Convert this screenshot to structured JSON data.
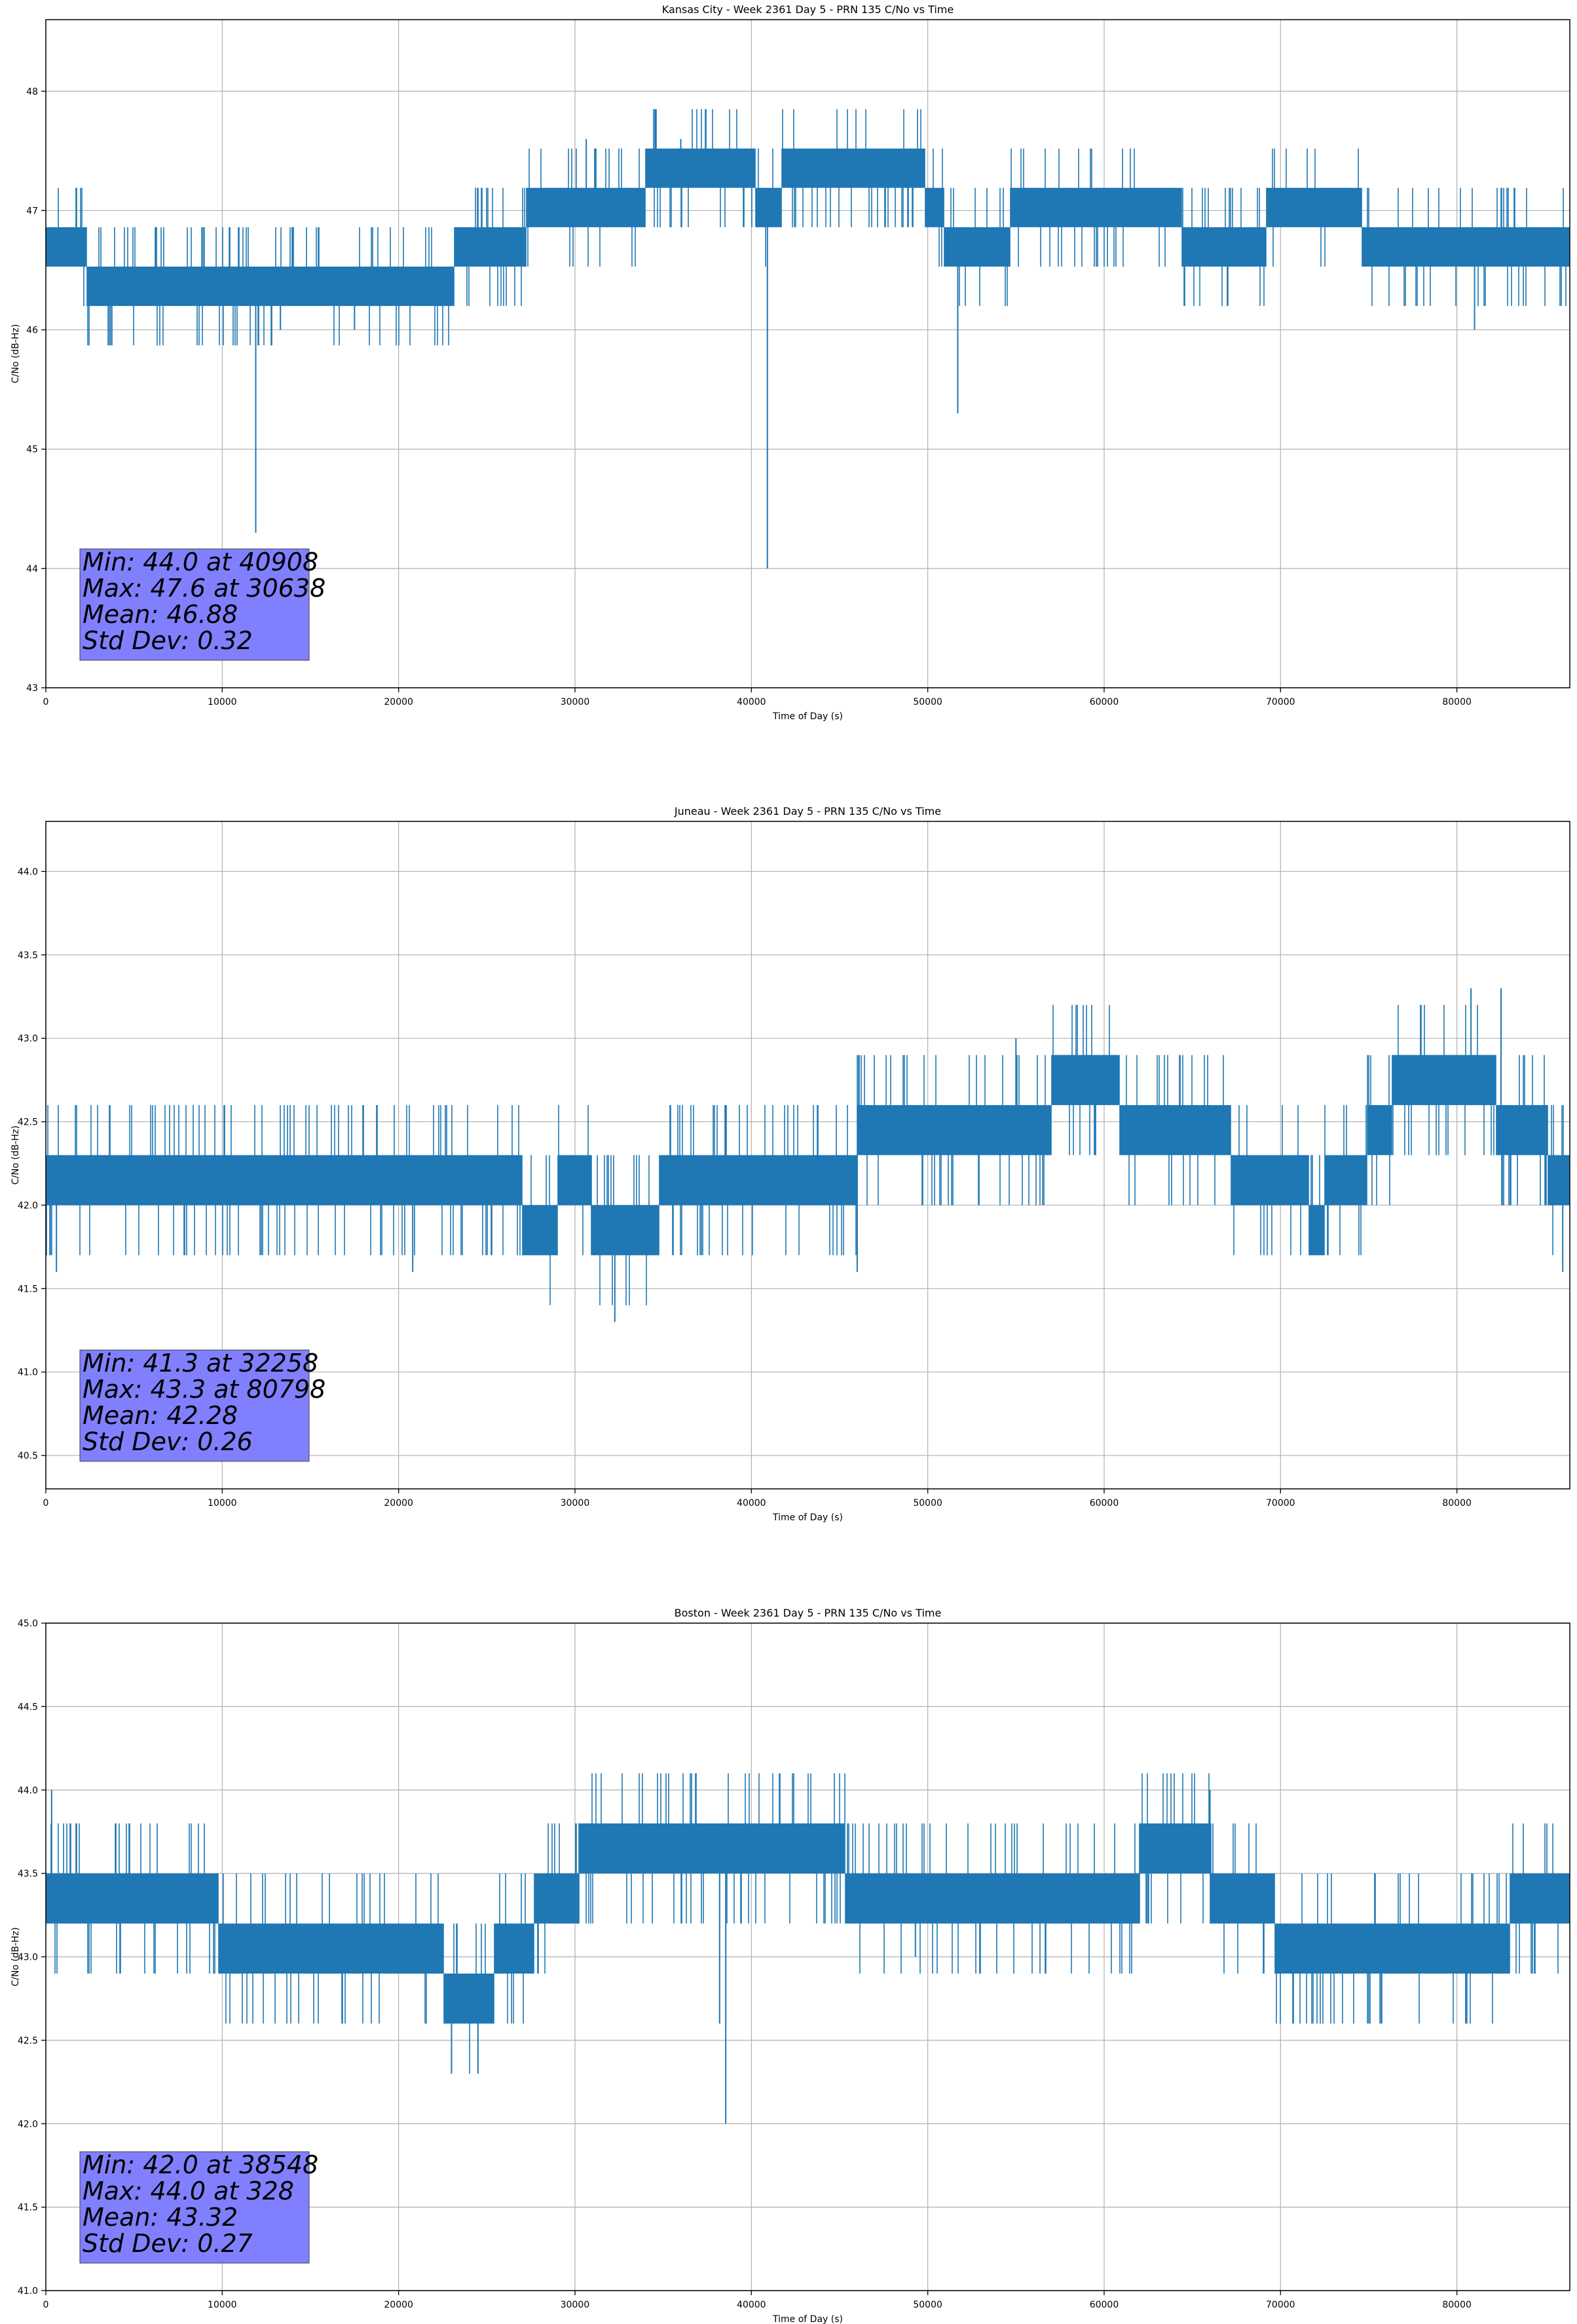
{
  "chart_data": [
    {
      "type": "line",
      "title": "Kansas City - Week 2361 Day 5 - PRN 135 C/No vs Time",
      "xlabel": "Time of Day (s)",
      "ylabel": "C/No (dB-Hz)",
      "xlim": [
        0,
        86400
      ],
      "ylim": [
        43,
        48.6
      ],
      "xticks": [
        0,
        10000,
        20000,
        30000,
        40000,
        50000,
        60000,
        70000,
        80000
      ],
      "yticks": [
        43,
        44,
        45,
        46,
        47,
        48
      ],
      "ytick_labels": [
        "43",
        "44",
        "45",
        "46",
        "47",
        "48"
      ],
      "grid": true,
      "series_color": "#1f77b4",
      "stats_box_color": "#8080ff",
      "quantization_step": 0.33,
      "series": [
        {
          "x": [
            0,
            1000,
            2500,
            5000,
            8000,
            11000,
            14000,
            17000,
            20000,
            23000,
            24200,
            27000,
            28000,
            30638,
            33000,
            36000,
            38000,
            40000,
            40908,
            42000,
            44000,
            46000,
            48000,
            49500,
            51000,
            51700,
            53000,
            56000,
            59000,
            62000,
            65000,
            68000,
            71000,
            74000,
            77000,
            80000,
            83000,
            86400
          ],
          "y": [
            46.7,
            46.8,
            46.45,
            46.4,
            46.45,
            46.45,
            46.45,
            46.45,
            46.45,
            46.45,
            46.8,
            46.8,
            47.1,
            47.15,
            47.15,
            47.2,
            47.2,
            47.3,
            46.9,
            47.35,
            47.45,
            47.45,
            47.35,
            47.3,
            46.85,
            46.8,
            46.8,
            46.95,
            47.05,
            46.95,
            46.85,
            46.8,
            47.0,
            46.9,
            46.75,
            46.75,
            46.75,
            46.7
          ],
          "spread": [
            0.3,
            0.3,
            0.25,
            0.2,
            0.25,
            0.25,
            0.2,
            0.2,
            0.2,
            0.25,
            0.35,
            0.35,
            0.35,
            0.35,
            0.3,
            0.25,
            0.3,
            0.35,
            0.4,
            0.4,
            0.3,
            0.3,
            0.3,
            0.35,
            0.35,
            0.35,
            0.35,
            0.4,
            0.35,
            0.35,
            0.35,
            0.35,
            0.4,
            0.35,
            0.35,
            0.35,
            0.35,
            0.3
          ]
        }
      ],
      "spikes": [
        {
          "x": 11900,
          "y": 44.3
        },
        {
          "x": 13300,
          "y": 46.0
        },
        {
          "x": 17500,
          "y": 46.0
        },
        {
          "x": 40908,
          "y": 44.0
        },
        {
          "x": 51700,
          "y": 45.3
        },
        {
          "x": 81000,
          "y": 46.0
        },
        {
          "x": 36000,
          "y": 47.6
        },
        {
          "x": 30638,
          "y": 47.6
        }
      ],
      "stats": [
        "Min: 44.0 at 40908",
        "Max: 47.6 at 30638",
        "Mean: 46.88",
        "Std Dev: 0.32"
      ]
    },
    {
      "type": "line",
      "title": "Juneau - Week 2361 Day 5 - PRN 135 C/No vs Time",
      "xlabel": "Time of Day (s)",
      "ylabel": "C/No (dB-Hz)",
      "xlim": [
        0,
        86400
      ],
      "ylim": [
        40.3,
        44.3
      ],
      "xticks": [
        0,
        10000,
        20000,
        30000,
        40000,
        50000,
        60000,
        70000,
        80000
      ],
      "yticks": [
        40.5,
        41.0,
        41.5,
        42.0,
        42.5,
        43.0,
        43.5,
        44.0
      ],
      "ytick_labels": [
        "40.5",
        "41.0",
        "41.5",
        "42.0",
        "42.5",
        "43.0",
        "43.5",
        "44.0"
      ],
      "grid": true,
      "series_color": "#1f77b4",
      "stats_box_color": "#8080ff",
      "quantization_step": 0.3,
      "series": [
        {
          "x": [
            0,
            3000,
            6000,
            9000,
            12000,
            15000,
            18000,
            21000,
            24000,
            26000,
            28000,
            30000,
            32258,
            34000,
            36000,
            38000,
            40000,
            42000,
            44000,
            46000,
            48000,
            50000,
            52000,
            54000,
            56000,
            58000,
            60000,
            62000,
            64000,
            66000,
            68000,
            70000,
            72000,
            74000,
            76000,
            78000,
            80798,
            83000,
            86400
          ],
          "y": [
            42.15,
            42.15,
            42.2,
            42.2,
            42.2,
            42.2,
            42.2,
            42.25,
            42.2,
            42.15,
            41.85,
            42.15,
            41.8,
            41.9,
            42.2,
            42.15,
            42.25,
            42.25,
            42.25,
            42.3,
            42.4,
            42.45,
            42.45,
            42.5,
            42.55,
            42.7,
            42.7,
            42.5,
            42.5,
            42.45,
            42.2,
            42.1,
            42.0,
            42.1,
            42.6,
            42.75,
            42.85,
            42.5,
            42.2
          ],
          "spread": [
            0.3,
            0.3,
            0.3,
            0.3,
            0.3,
            0.3,
            0.3,
            0.3,
            0.3,
            0.3,
            0.3,
            0.3,
            0.35,
            0.35,
            0.3,
            0.3,
            0.3,
            0.3,
            0.3,
            0.3,
            0.3,
            0.3,
            0.3,
            0.3,
            0.35,
            0.35,
            0.35,
            0.3,
            0.3,
            0.3,
            0.3,
            0.3,
            0.35,
            0.35,
            0.35,
            0.35,
            0.35,
            0.35,
            0.3
          ]
        }
      ],
      "spikes": [
        {
          "x": 600,
          "y": 41.6
        },
        {
          "x": 20800,
          "y": 41.6
        },
        {
          "x": 32258,
          "y": 41.3
        },
        {
          "x": 46000,
          "y": 41.6
        },
        {
          "x": 55000,
          "y": 43.0
        },
        {
          "x": 80798,
          "y": 43.3
        },
        {
          "x": 82500,
          "y": 43.3
        },
        {
          "x": 86000,
          "y": 41.6
        }
      ],
      "stats": [
        "Min: 41.3 at 32258",
        "Max: 43.3 at 80798",
        "Mean: 42.28",
        "Std Dev: 0.26"
      ]
    },
    {
      "type": "line",
      "title": "Boston - Week 2361 Day 5 - PRN 135 C/No vs Time",
      "xlabel": "Time of Day (s)",
      "ylabel": "C/No (dB-Hz)",
      "xlim": [
        0,
        86400
      ],
      "ylim": [
        41.0,
        45.0
      ],
      "xticks": [
        0,
        10000,
        20000,
        30000,
        40000,
        50000,
        60000,
        70000,
        80000
      ],
      "yticks": [
        41.0,
        41.5,
        42.0,
        42.5,
        43.0,
        43.5,
        44.0,
        44.5,
        45.0
      ],
      "ytick_labels": [
        "41.0",
        "41.5",
        "42.0",
        "42.5",
        "43.0",
        "43.5",
        "44.0",
        "44.5",
        "45.0"
      ],
      "grid": true,
      "series_color": "#1f77b4",
      "stats_box_color": "#8080ff",
      "quantization_step": 0.3,
      "series": [
        {
          "x": [
            0,
            3000,
            6000,
            9000,
            10000,
            13000,
            16000,
            19000,
            22000,
            24000,
            26000,
            28000,
            30000,
            32000,
            34000,
            36000,
            38548,
            40000,
            42000,
            44000,
            46000,
            48000,
            50000,
            52000,
            54000,
            56000,
            58000,
            60000,
            62000,
            64000,
            66000,
            68000,
            70000,
            72000,
            74000,
            77000,
            80000,
            83000,
            86400
          ],
          "y": [
            43.45,
            43.4,
            43.4,
            43.4,
            43.15,
            43.15,
            43.15,
            43.1,
            42.95,
            42.8,
            42.95,
            43.25,
            43.5,
            43.7,
            43.75,
            43.7,
            43.55,
            43.6,
            43.7,
            43.6,
            43.45,
            43.5,
            43.45,
            43.5,
            43.45,
            43.4,
            43.3,
            43.45,
            43.5,
            43.55,
            43.5,
            43.45,
            43.15,
            43.15,
            43.15,
            43.15,
            43.15,
            43.2,
            43.2
          ],
          "spread": [
            0.3,
            0.3,
            0.3,
            0.3,
            0.3,
            0.3,
            0.3,
            0.3,
            0.3,
            0.35,
            0.3,
            0.3,
            0.35,
            0.35,
            0.35,
            0.35,
            0.35,
            0.35,
            0.35,
            0.3,
            0.3,
            0.3,
            0.3,
            0.3,
            0.3,
            0.3,
            0.3,
            0.3,
            0.3,
            0.35,
            0.3,
            0.3,
            0.3,
            0.3,
            0.3,
            0.3,
            0.3,
            0.3,
            0.3
          ]
        }
      ],
      "spikes": [
        {
          "x": 328,
          "y": 44.0
        },
        {
          "x": 23000,
          "y": 42.3
        },
        {
          "x": 24500,
          "y": 42.3
        },
        {
          "x": 38200,
          "y": 42.6
        },
        {
          "x": 38548,
          "y": 42.0
        },
        {
          "x": 49300,
          "y": 43.0
        },
        {
          "x": 66000,
          "y": 44.0
        },
        {
          "x": 80500,
          "y": 42.6
        }
      ],
      "stats": [
        "Min: 42.0 at 38548",
        "Max: 44.0 at 328",
        "Mean: 43.32",
        "Std Dev: 0.27"
      ]
    }
  ]
}
